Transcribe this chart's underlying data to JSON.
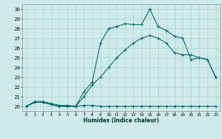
{
  "xlabel": "Humidex (Indice chaleur)",
  "ylabel": "",
  "background_color": "#ceeaea",
  "grid_color": "#aacccc",
  "line_color": "#006666",
  "xlim": [
    -0.5,
    23.5
  ],
  "ylim": [
    19.5,
    30.5
  ],
  "xticks": [
    0,
    1,
    2,
    3,
    4,
    5,
    6,
    7,
    8,
    9,
    10,
    11,
    12,
    13,
    14,
    15,
    16,
    17,
    18,
    19,
    20,
    21,
    22,
    23
  ],
  "yticks": [
    20,
    21,
    22,
    23,
    24,
    25,
    26,
    27,
    28,
    29,
    30
  ],
  "lines": [
    {
      "x": [
        0,
        1,
        2,
        3,
        4,
        5,
        6,
        7,
        8,
        9,
        10,
        11,
        12,
        13,
        14,
        15,
        16,
        17,
        18,
        19,
        20,
        21,
        22,
        23
      ],
      "y": [
        20,
        20.4,
        20.4,
        20.2,
        20.0,
        20.0,
        20.0,
        20.1,
        20.1,
        20.0,
        20.0,
        20.0,
        20.0,
        20.0,
        20.0,
        20.0,
        20.0,
        20.0,
        20.0,
        20.0,
        20.0,
        20.0,
        20.0,
        20.0
      ]
    },
    {
      "x": [
        0,
        1,
        2,
        3,
        4,
        5,
        6,
        7,
        8,
        9,
        10,
        11,
        12,
        13,
        14,
        15,
        16,
        17,
        18,
        19,
        20,
        21,
        22,
        23
      ],
      "y": [
        20,
        20.5,
        20.5,
        20.3,
        20.1,
        20.1,
        20.0,
        21.0,
        22.2,
        23.0,
        24.0,
        25.0,
        25.8,
        26.5,
        27.0,
        27.3,
        27.0,
        26.5,
        25.5,
        25.3,
        25.3,
        25.0,
        24.8,
        23.0
      ]
    },
    {
      "x": [
        0,
        1,
        2,
        3,
        4,
        5,
        6,
        7,
        8,
        9,
        10,
        11,
        12,
        13,
        14,
        15,
        16,
        17,
        18,
        19,
        20,
        21,
        22,
        23
      ],
      "y": [
        20,
        20.4,
        20.4,
        20.2,
        20.0,
        20.0,
        20.0,
        21.5,
        22.5,
        26.5,
        28.0,
        28.2,
        28.5,
        28.4,
        28.4,
        30.0,
        28.2,
        27.8,
        27.2,
        27.0,
        24.8,
        25.0,
        24.8,
        23.0
      ]
    }
  ]
}
